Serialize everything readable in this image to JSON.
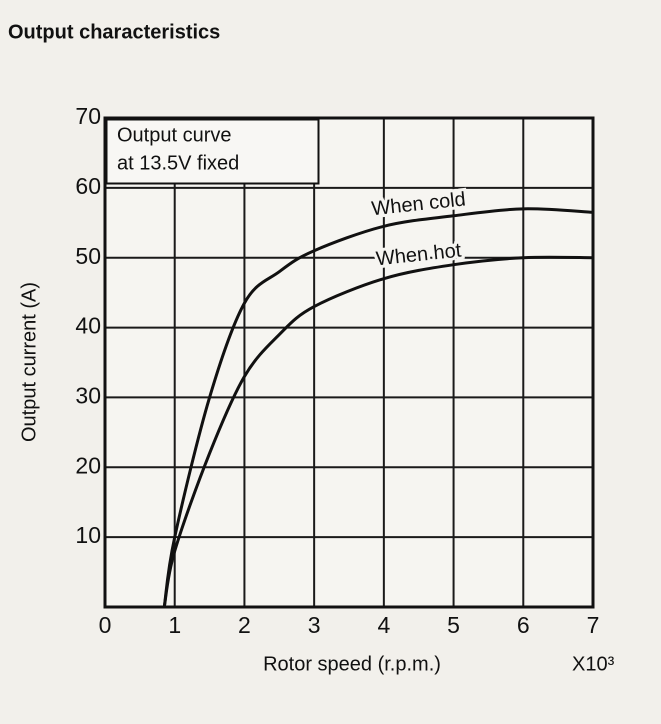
{
  "chart_data": {
    "type": "line",
    "title": "Output characteristics",
    "x_label": "Rotor speed (r.p.m.)",
    "x_multiplier": "X10³",
    "y_label": "Output current (A)",
    "annotations": [
      "Output curve",
      "at 13.5V fixed"
    ],
    "x": [
      0.85,
      1,
      1.5,
      2,
      2.5,
      3,
      4,
      5,
      6,
      7
    ],
    "series": [
      {
        "name": "When cold",
        "color": "#111111",
        "values": [
          0,
          10,
          30,
          43.5,
          48,
          51,
          54.5,
          56,
          57,
          56.5
        ]
      },
      {
        "name": "When hot",
        "color": "#111111",
        "values": [
          0,
          8,
          22,
          33,
          39,
          43,
          47,
          49,
          50,
          50
        ]
      }
    ],
    "xlim": [
      0,
      7
    ],
    "xticks": [
      0,
      1,
      2,
      3,
      4,
      5,
      6,
      7
    ],
    "ylim": [
      0,
      70
    ],
    "yticks": [
      10,
      20,
      30,
      40,
      50,
      60,
      70
    ],
    "grid": true
  }
}
